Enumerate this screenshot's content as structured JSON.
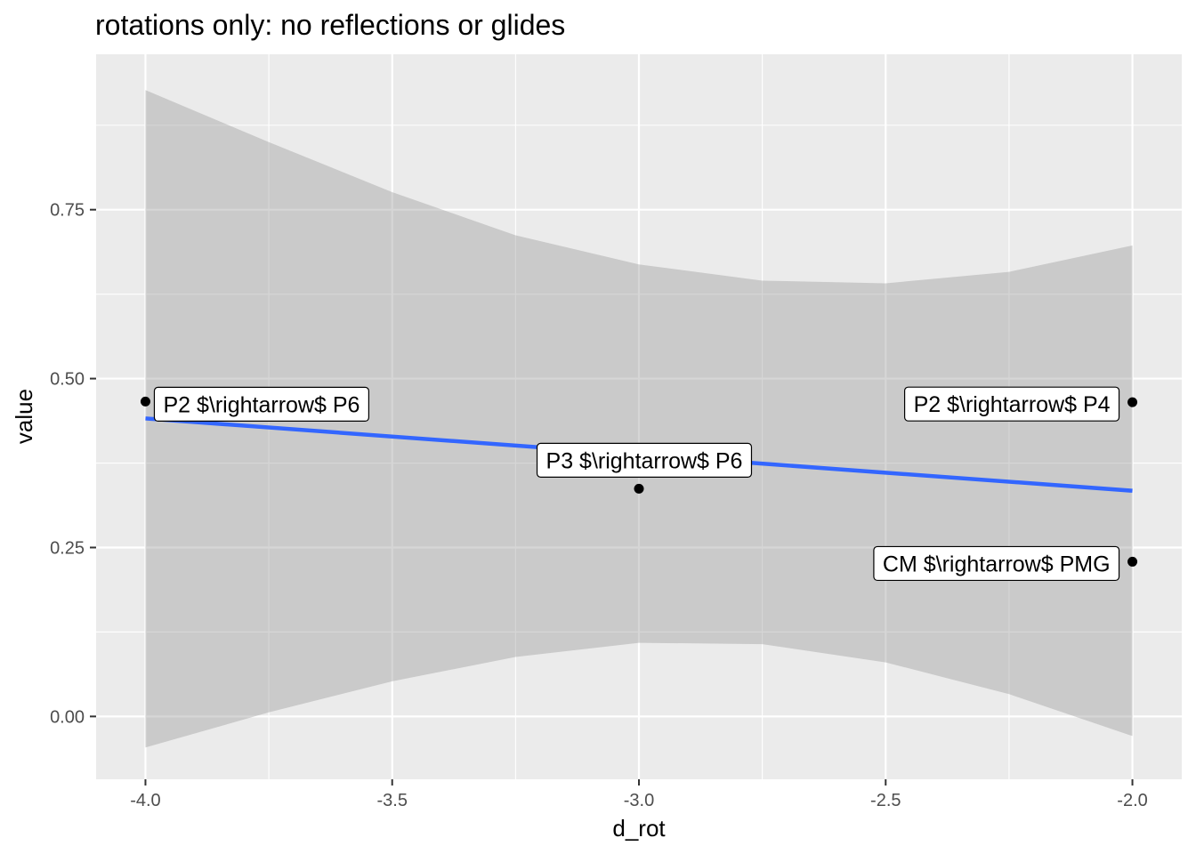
{
  "chart_data": {
    "type": "scatter",
    "title": "rotations only: no reflections or glides",
    "xlabel": "d_rot",
    "ylabel": "value",
    "xlim": [
      -4.1,
      -1.9
    ],
    "ylim": [
      -0.093,
      0.98
    ],
    "x_ticks": [
      -4.0,
      -3.5,
      -3.0,
      -2.5,
      -2.0
    ],
    "x_tick_labels": [
      "-4.0",
      "-3.5",
      "-3.0",
      "-2.5",
      "-2.0"
    ],
    "y_ticks": [
      0.0,
      0.25,
      0.5,
      0.75
    ],
    "y_tick_labels": [
      "0.00",
      "0.25",
      "0.50",
      "0.75"
    ],
    "x_minor": [
      -3.75,
      -3.25,
      -2.75,
      -2.25
    ],
    "y_minor": [
      0.125,
      0.375,
      0.625,
      0.875
    ],
    "grid": true,
    "points": [
      {
        "x": -4.0,
        "y": 0.466,
        "label": "P2 $\\rightarrow$ P6",
        "label_side": "right"
      },
      {
        "x": -3.0,
        "y": 0.337,
        "label": "P3 $\\rightarrow$ P6",
        "label_side": "above"
      },
      {
        "x": -2.0,
        "y": 0.465,
        "label": "P2 $\\rightarrow$ P4",
        "label_side": "left"
      },
      {
        "x": -2.0,
        "y": 0.229,
        "label": "CM $\\rightarrow$ PMG",
        "label_side": "left"
      }
    ],
    "fit_line": {
      "x": [
        -4.0,
        -2.0
      ],
      "y": [
        0.441,
        0.334
      ],
      "color": "#3366FF"
    },
    "confidence_band": {
      "x": [
        -4.0,
        -3.75,
        -3.5,
        -3.25,
        -3.0,
        -2.75,
        -2.5,
        -2.25,
        -2.0
      ],
      "upper": [
        0.927,
        0.85,
        0.776,
        0.712,
        0.669,
        0.645,
        0.641,
        0.658,
        0.697
      ],
      "lower": [
        -0.046,
        0.006,
        0.052,
        0.088,
        0.109,
        0.107,
        0.08,
        0.033,
        -0.029
      ],
      "color": "#999999"
    },
    "colors": {
      "panel": "#EBEBEB",
      "grid": "#FFFFFF",
      "band": "#C0C0C0",
      "point": "#000000"
    }
  }
}
